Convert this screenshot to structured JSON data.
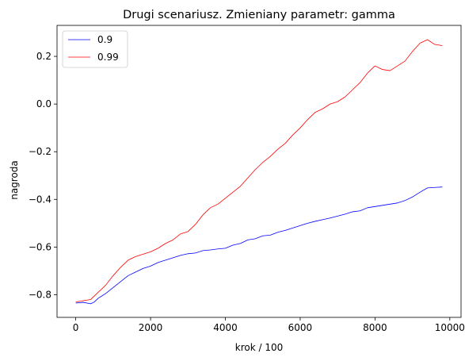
{
  "chart_data": {
    "type": "line",
    "title": "Drugi scenariusz. Zmieniany parametr: gamma",
    "xlabel": "krok / 100",
    "ylabel": "nagroda",
    "xlim": [
      -500,
      10300
    ],
    "ylim": [
      -0.895,
      0.33
    ],
    "xticks": [
      0,
      2000,
      4000,
      6000,
      8000,
      10000
    ],
    "yticks": [
      -0.8,
      -0.6,
      -0.4,
      -0.2,
      0.0,
      0.2
    ],
    "xtick_labels": [
      "0",
      "2000",
      "4000",
      "6000",
      "8000",
      "10000"
    ],
    "ytick_labels": [
      "−0.8",
      "−0.6",
      "−0.4",
      "−0.2",
      "0.0",
      "0.2"
    ],
    "grid": false,
    "legend": "upper left",
    "series": [
      {
        "name": "0.9",
        "color": "#0000ff",
        "x": [
          0,
          200,
          400,
          500,
          600,
          800,
          1000,
          1200,
          1400,
          1600,
          1800,
          2000,
          2200,
          2400,
          2600,
          2800,
          3000,
          3200,
          3400,
          3600,
          3800,
          4000,
          4200,
          4400,
          4600,
          4800,
          5000,
          5200,
          5400,
          5600,
          5800,
          6000,
          6200,
          6400,
          6600,
          6800,
          7000,
          7200,
          7400,
          7600,
          7800,
          8000,
          8200,
          8400,
          8600,
          8800,
          9000,
          9200,
          9400,
          9600,
          9800
        ],
        "y": [
          -0.835,
          -0.832,
          -0.838,
          -0.83,
          -0.815,
          -0.795,
          -0.77,
          -0.745,
          -0.72,
          -0.705,
          -0.69,
          -0.68,
          -0.665,
          -0.655,
          -0.645,
          -0.635,
          -0.628,
          -0.625,
          -0.615,
          -0.612,
          -0.608,
          -0.605,
          -0.592,
          -0.585,
          -0.57,
          -0.565,
          -0.553,
          -0.55,
          -0.538,
          -0.53,
          -0.52,
          -0.51,
          -0.5,
          -0.492,
          -0.485,
          -0.478,
          -0.47,
          -0.462,
          -0.452,
          -0.448,
          -0.435,
          -0.43,
          -0.425,
          -0.42,
          -0.415,
          -0.405,
          -0.39,
          -0.37,
          -0.352,
          -0.35,
          -0.348
        ]
      },
      {
        "name": "0.99",
        "color": "#ff0000",
        "x": [
          0,
          200,
          400,
          500,
          600,
          800,
          1000,
          1200,
          1400,
          1600,
          1800,
          2000,
          2200,
          2400,
          2600,
          2800,
          3000,
          3200,
          3400,
          3600,
          3800,
          4000,
          4200,
          4400,
          4600,
          4800,
          5000,
          5200,
          5400,
          5600,
          5800,
          6000,
          6200,
          6400,
          6600,
          6800,
          7000,
          7200,
          7400,
          7600,
          7800,
          8000,
          8200,
          8400,
          8600,
          8800,
          9000,
          9200,
          9400,
          9600,
          9800
        ],
        "y": [
          -0.83,
          -0.825,
          -0.82,
          -0.805,
          -0.79,
          -0.76,
          -0.72,
          -0.685,
          -0.655,
          -0.64,
          -0.63,
          -0.62,
          -0.605,
          -0.585,
          -0.57,
          -0.545,
          -0.535,
          -0.505,
          -0.465,
          -0.435,
          -0.42,
          -0.395,
          -0.37,
          -0.345,
          -0.31,
          -0.275,
          -0.245,
          -0.22,
          -0.19,
          -0.165,
          -0.13,
          -0.1,
          -0.065,
          -0.035,
          -0.02,
          0.0,
          0.01,
          0.03,
          0.06,
          0.09,
          0.13,
          0.16,
          0.145,
          0.14,
          0.16,
          0.18,
          0.22,
          0.255,
          0.27,
          0.25,
          0.245
        ]
      }
    ]
  }
}
